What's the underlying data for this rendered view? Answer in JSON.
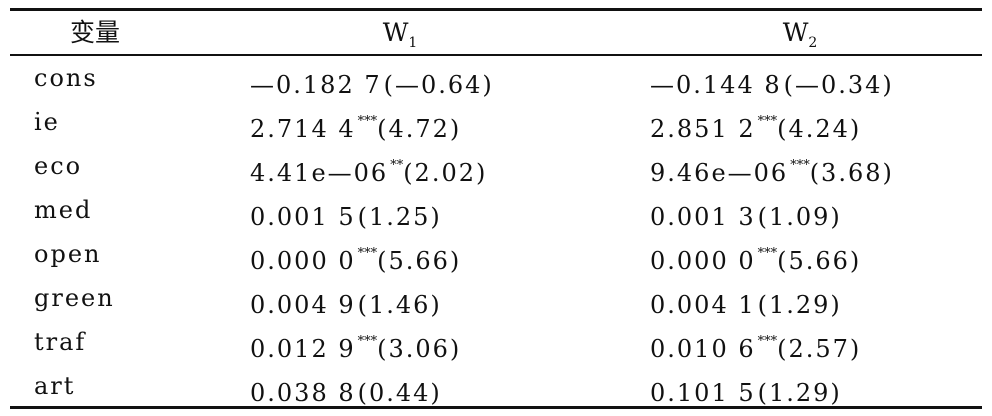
{
  "table": {
    "headers": {
      "var": "变量",
      "w1": {
        "main": "W",
        "sub": "1"
      },
      "w2": {
        "main": "W",
        "sub": "2"
      }
    },
    "rows": [
      {
        "var": "cons",
        "w1": {
          "coef": "—0.182 7",
          "stars": "",
          "t": "(—0.64)"
        },
        "w2": {
          "coef": "—0.144 8",
          "stars": "",
          "t": "(—0.34)"
        }
      },
      {
        "var": "ie",
        "w1": {
          "coef": "2.714 4",
          "stars": "***",
          "t": "(4.72)"
        },
        "w2": {
          "coef": "2.851 2",
          "stars": "***",
          "t": "(4.24)"
        }
      },
      {
        "var": "eco",
        "w1": {
          "coef": "4.41e—06",
          "stars": "**",
          "t": "(2.02)"
        },
        "w2": {
          "coef": "9.46e—06",
          "stars": "***",
          "t": "(3.68)"
        }
      },
      {
        "var": "med",
        "w1": {
          "coef": "0.001 5",
          "stars": "",
          "t": "(1.25)"
        },
        "w2": {
          "coef": "0.001 3",
          "stars": "",
          "t": "(1.09)"
        }
      },
      {
        "var": "open",
        "w1": {
          "coef": "0.000 0",
          "stars": "***",
          "t": "(5.66)"
        },
        "w2": {
          "coef": "0.000 0",
          "stars": "***",
          "t": "(5.66)"
        }
      },
      {
        "var": "green",
        "w1": {
          "coef": "0.004 9",
          "stars": "",
          "t": "(1.46)"
        },
        "w2": {
          "coef": "0.004 1",
          "stars": "",
          "t": "(1.29)"
        }
      },
      {
        "var": "traf",
        "w1": {
          "coef": "0.012 9",
          "stars": "***",
          "t": "(3.06)"
        },
        "w2": {
          "coef": "0.010 6",
          "stars": "***",
          "t": "(2.57)"
        }
      },
      {
        "var": "art",
        "w1": {
          "coef": "0.038 8",
          "stars": "",
          "t": "(0.44)"
        },
        "w2": {
          "coef": "0.101 5",
          "stars": "",
          "t": "(1.29)"
        }
      }
    ]
  }
}
